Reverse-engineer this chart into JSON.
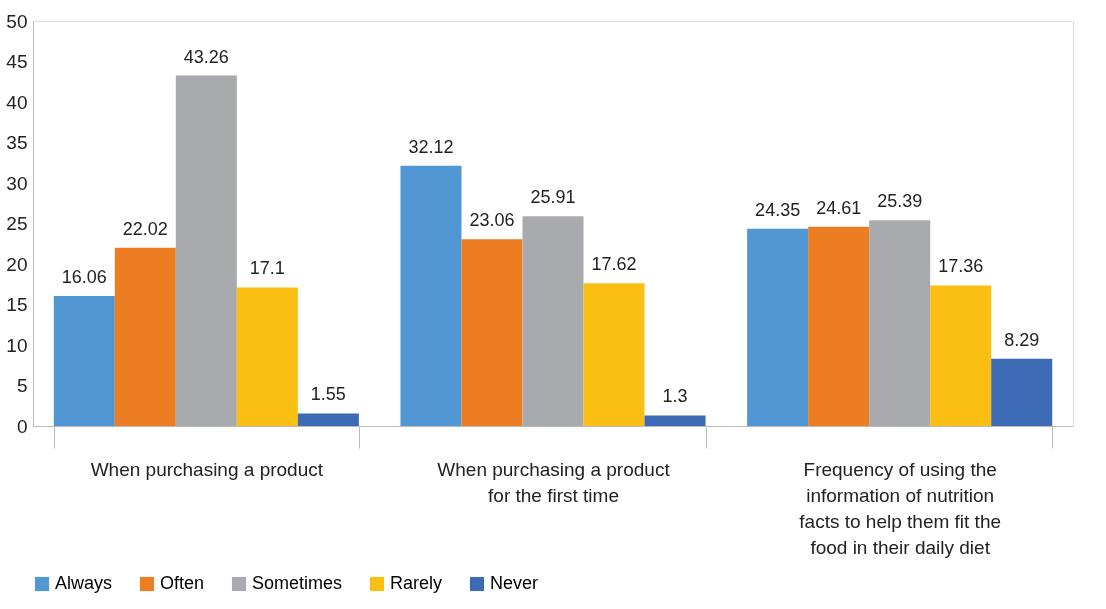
{
  "chart_data": {
    "type": "bar",
    "categories": [
      "When purchasing a product",
      "When purchasing a product for the first time",
      "Frequency of using the information of nutrition facts to help them fit the food in their daily diet"
    ],
    "series": [
      {
        "name": "Always",
        "color": "#5097d4",
        "values": [
          16.06,
          32.12,
          24.35
        ]
      },
      {
        "name": "Often",
        "color": "#ed7d23",
        "values": [
          22.02,
          23.06,
          24.61
        ]
      },
      {
        "name": "Sometimes",
        "color": "#a9aaad",
        "values": [
          43.26,
          25.91,
          25.39
        ]
      },
      {
        "name": "Rarely",
        "color": "#fbbf14",
        "values": [
          17.1,
          17.62,
          17.36
        ]
      },
      {
        "name": "Never",
        "color": "#3d6bb6",
        "values": [
          1.55,
          1.3,
          8.29
        ]
      }
    ],
    "ylim": [
      0,
      50
    ],
    "yticks": [
      0,
      5,
      10,
      15,
      20,
      25,
      30,
      35,
      40,
      45,
      50
    ],
    "data_labels": true,
    "legend": "bottom",
    "grid": false
  }
}
